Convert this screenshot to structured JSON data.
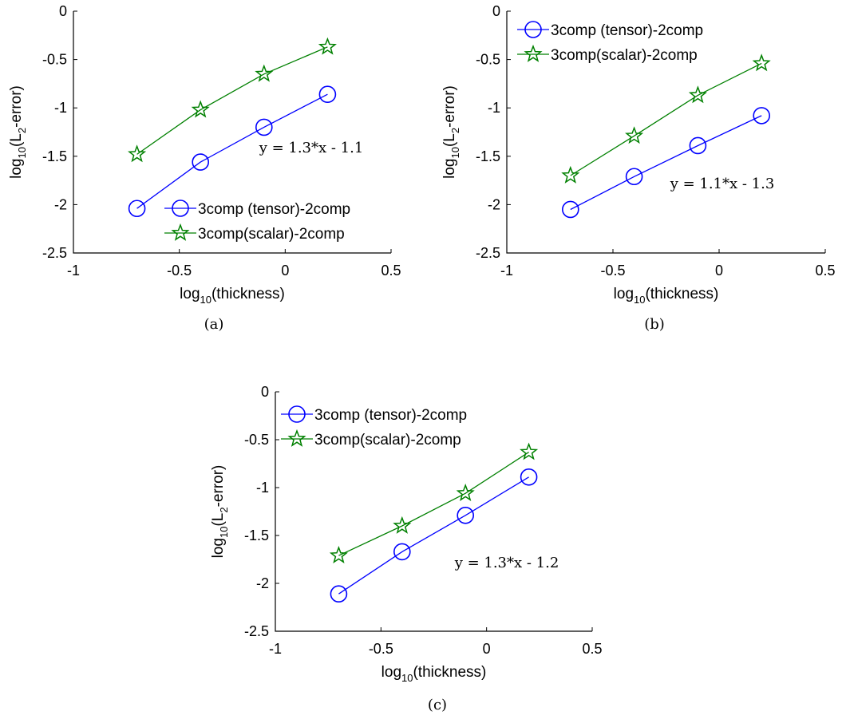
{
  "chart_data": [
    {
      "type": "line",
      "caption": "(a)",
      "xlabel": {
        "main": "log",
        "sub": "10",
        "rest": "(thickness)"
      },
      "ylabel": {
        "main": "log",
        "sub": "10",
        "mid": "(L",
        "sub2": "2",
        "rest": "-error)"
      },
      "xlim": [
        -1,
        0.5
      ],
      "ylim": [
        -2.5,
        0
      ],
      "xticks": [
        -1,
        -0.5,
        0,
        0.5
      ],
      "xtick_labels": [
        "-1",
        "-0.5",
        "0",
        "0.5"
      ],
      "yticks": [
        0,
        -0.5,
        -1,
        -1.5,
        -2,
        -2.5
      ],
      "ytick_labels": [
        "0",
        "-0.5",
        "-1",
        "-1.5",
        "-2",
        "-2.5"
      ],
      "grid": false,
      "legend_position": "bottom-right",
      "annotation": "y = 1.3*x - 1.1",
      "series": [
        {
          "name": "3comp (tensor)-2comp",
          "color": "#0000ff",
          "marker": "circle",
          "x": [
            -0.7,
            -0.4,
            -0.1,
            0.2
          ],
          "y": [
            -2.04,
            -1.56,
            -1.2,
            -0.86
          ]
        },
        {
          "name": "3comp(scalar)-2comp",
          "color": "#008000",
          "marker": "star",
          "x": [
            -0.7,
            -0.4,
            -0.1,
            0.2
          ],
          "y": [
            -1.48,
            -1.02,
            -0.65,
            -0.37
          ]
        }
      ]
    },
    {
      "type": "line",
      "caption": "(b)",
      "xlabel": {
        "main": "log",
        "sub": "10",
        "rest": "(thickness)"
      },
      "ylabel": {
        "main": "log",
        "sub": "10",
        "mid": "(L",
        "sub2": "2",
        "rest": "-error)"
      },
      "xlim": [
        -1,
        0.5
      ],
      "ylim": [
        -2.5,
        0
      ],
      "xticks": [
        -1,
        -0.5,
        0,
        0.5
      ],
      "xtick_labels": [
        "-1",
        "-0.5",
        "0",
        "0.5"
      ],
      "yticks": [
        0,
        -0.5,
        -1,
        -1.5,
        -2,
        -2.5
      ],
      "ytick_labels": [
        "0",
        "-0.5",
        "-1",
        "-1.5",
        "-2",
        "-2.5"
      ],
      "grid": false,
      "legend_position": "top-left",
      "annotation": "y = 1.1*x - 1.3",
      "series": [
        {
          "name": "3comp (tensor)-2comp",
          "color": "#0000ff",
          "marker": "circle",
          "x": [
            -0.7,
            -0.4,
            -0.1,
            0.2
          ],
          "y": [
            -2.05,
            -1.71,
            -1.39,
            -1.08
          ]
        },
        {
          "name": "3comp(scalar)-2comp",
          "color": "#008000",
          "marker": "star",
          "x": [
            -0.7,
            -0.4,
            -0.1,
            0.2
          ],
          "y": [
            -1.7,
            -1.29,
            -0.87,
            -0.54
          ]
        }
      ]
    },
    {
      "type": "line",
      "caption": "(c)",
      "xlabel": {
        "main": "log",
        "sub": "10",
        "rest": "(thickness)"
      },
      "ylabel": {
        "main": "log",
        "sub": "10",
        "mid": "(L",
        "sub2": "2",
        "rest": "-error)"
      },
      "xlim": [
        -1,
        0.5
      ],
      "ylim": [
        -2.5,
        0
      ],
      "xticks": [
        -1,
        -0.5,
        0,
        0.5
      ],
      "xtick_labels": [
        "-1",
        "-0.5",
        "0",
        "0.5"
      ],
      "yticks": [
        0,
        -0.5,
        -1,
        -1.5,
        -2,
        -2.5
      ],
      "ytick_labels": [
        "0",
        "-0.5",
        "-1",
        "-1.5",
        "-2",
        "-2.5"
      ],
      "grid": false,
      "legend_position": "top-left",
      "annotation": "y = 1.3*x - 1.2",
      "series": [
        {
          "name": "3comp (tensor)-2comp",
          "color": "#0000ff",
          "marker": "circle",
          "x": [
            -0.7,
            -0.4,
            -0.1,
            0.2
          ],
          "y": [
            -2.11,
            -1.67,
            -1.29,
            -0.89
          ]
        },
        {
          "name": "3comp(scalar)-2comp",
          "color": "#008000",
          "marker": "star",
          "x": [
            -0.7,
            -0.4,
            -0.1,
            0.2
          ],
          "y": [
            -1.71,
            -1.4,
            -1.06,
            -0.63
          ]
        }
      ]
    }
  ]
}
